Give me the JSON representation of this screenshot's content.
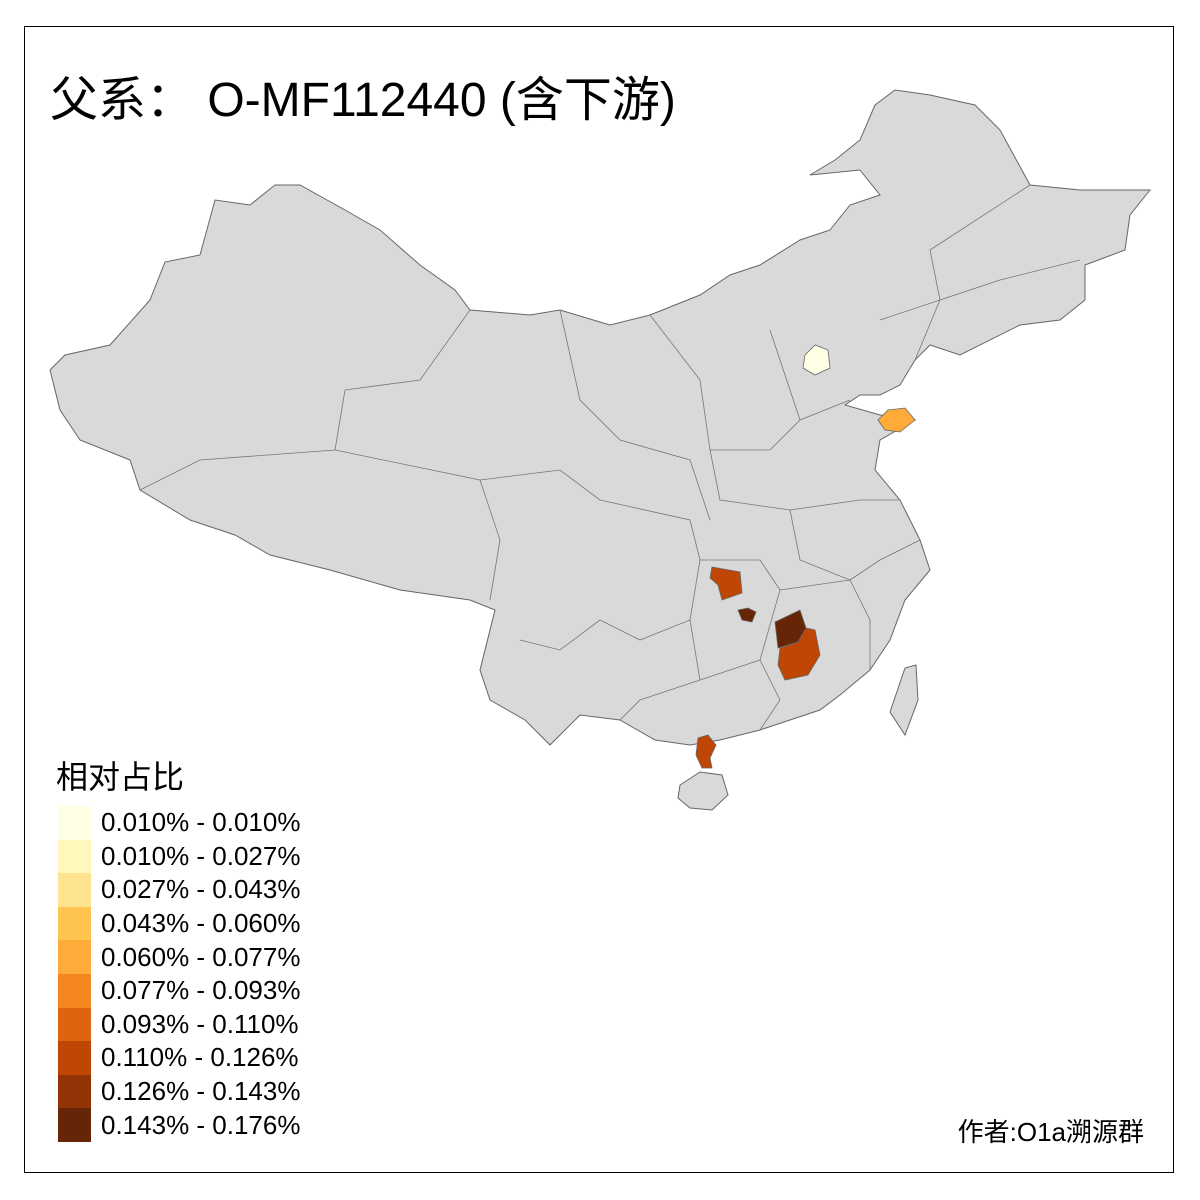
{
  "title": "父系： O-MF112440 (含下游)",
  "legend": {
    "title": "相对占比",
    "items": [
      {
        "label": "0.010% - 0.010%",
        "color": "#FFFFE5"
      },
      {
        "label": "0.010% - 0.027%",
        "color": "#FFF7BC"
      },
      {
        "label": "0.027% - 0.043%",
        "color": "#FEE391"
      },
      {
        "label": "0.043% - 0.060%",
        "color": "#FEC44F"
      },
      {
        "label": "0.060% - 0.077%",
        "color": "#FEAB3A"
      },
      {
        "label": "0.077% - 0.093%",
        "color": "#F3861E"
      },
      {
        "label": "0.093% - 0.110%",
        "color": "#DE6410"
      },
      {
        "label": "0.110% - 0.126%",
        "color": "#BF4605"
      },
      {
        "label": "0.126% - 0.143%",
        "color": "#933204"
      },
      {
        "label": "0.143% - 0.176%",
        "color": "#662506"
      }
    ]
  },
  "map": {
    "base_color": "#D9D9D9",
    "border_color": "#666666",
    "highlighted_regions": [
      {
        "class_index": 0,
        "color": "#FFFFE5"
      },
      {
        "class_index": 4,
        "color": "#FEAB3A"
      },
      {
        "class_index": 7,
        "color": "#BF4605"
      },
      {
        "class_index": 9,
        "color": "#662506"
      },
      {
        "class_index": 9,
        "color": "#662506"
      },
      {
        "class_index": 7,
        "color": "#BF4605"
      },
      {
        "class_index": 7,
        "color": "#BF4605"
      }
    ]
  },
  "author": "作者:O1a溯源群"
}
